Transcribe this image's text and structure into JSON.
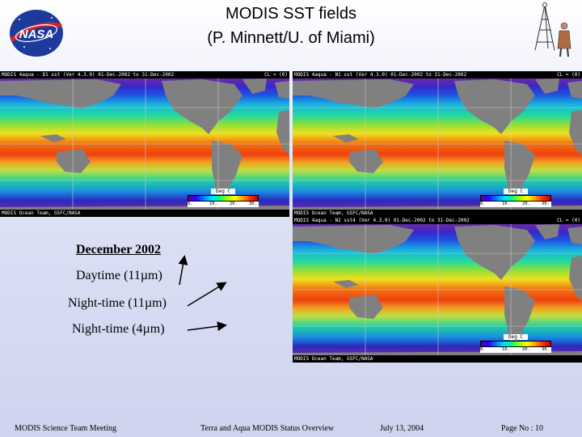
{
  "header": {
    "title_line1": "MODIS SST fields",
    "title_line2": "(P. Minnett/U. of Miami)",
    "logo_text": "NASA"
  },
  "maps": [
    {
      "header_left": "MODIS 4aqua - D1 sst  (Ver 4.3.0)  01-Dec-2002 to 31-Dec-2002",
      "header_right": "CL = (0)",
      "footer_left": "MODIS Ocean Team, GSFC/NASA",
      "cbar_unit": "Deg C",
      "ticks": [
        "0.",
        "10.",
        "20.",
        "30."
      ]
    },
    {
      "header_left": "MODIS 4aqua - N1 sst  (Ver 4.3.0)  01-Dec-2002 to 31-Dec-2002",
      "header_right": "CL = (0)",
      "footer_left": "MODIS Ocean Team, GSFC/NASA",
      "cbar_unit": "Deg C",
      "ticks": [
        "0.",
        "10.",
        "20.",
        "30."
      ]
    },
    {
      "header_left": "MODIS 4aqua - N2 sst4  (Ver 4.3.0)  01-Dec-2002 to 31-Dec-2002",
      "header_right": "CL = (0)",
      "footer_left": "MODIS Ocean Team, GSFC/NASA",
      "cbar_unit": "Deg C",
      "ticks": [
        "0.",
        "10.",
        "20.",
        "30."
      ]
    }
  ],
  "legend": {
    "heading": "December 2002",
    "day": "Daytime (11µm)",
    "night11": "Night-time (11µm)",
    "night4": "Night-time (4µm)"
  },
  "footer": {
    "meeting": "MODIS Science Team Meeting",
    "overview": "Terra and Aqua MODIS Status Overview",
    "date": "July 13, 2004",
    "page": "Page No :  10"
  }
}
